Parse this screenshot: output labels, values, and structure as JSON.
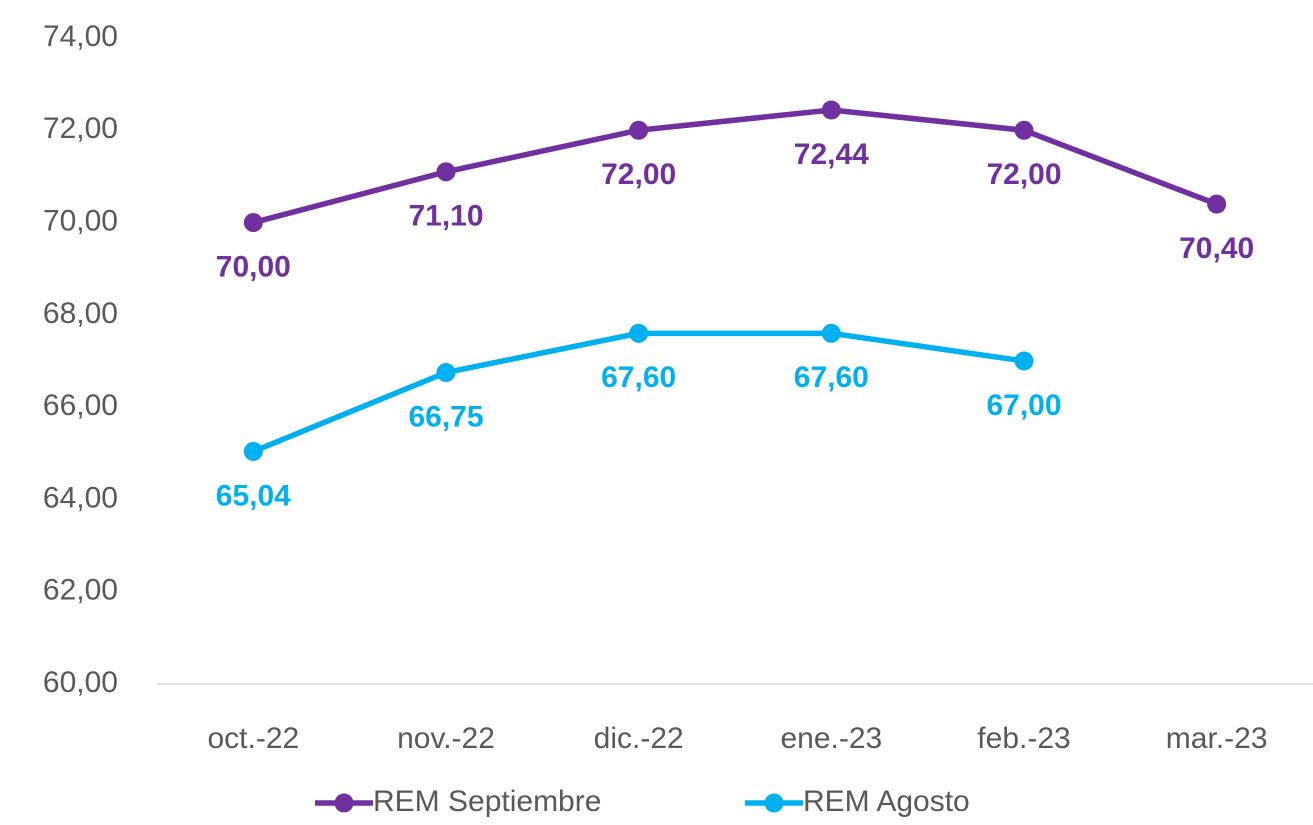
{
  "chart_data": {
    "type": "line",
    "categories": [
      "oct.-22",
      "nov.-22",
      "dic.-22",
      "ene.-23",
      "feb.-23",
      "mar.-23"
    ],
    "series": [
      {
        "name": "REM Septiembre",
        "color": "#7030a0",
        "values": [
          70.0,
          71.1,
          72.0,
          72.44,
          72.0,
          70.4
        ],
        "value_labels": [
          "70,00",
          "71,10",
          "72,00",
          "72,44",
          "72,00",
          "70,40"
        ]
      },
      {
        "name": "REM Agosto",
        "color": "#00b0f0",
        "values": [
          65.04,
          66.75,
          67.6,
          67.6,
          67.0,
          null
        ],
        "value_labels": [
          "65,04",
          "66,75",
          "67,60",
          "67,60",
          "67,00",
          null
        ]
      }
    ],
    "ylim": [
      60,
      74
    ],
    "yticks": [
      {
        "value": 60,
        "label": "60,00"
      },
      {
        "value": 62,
        "label": "62,00"
      },
      {
        "value": 64,
        "label": "64,00"
      },
      {
        "value": 66,
        "label": "66,00"
      },
      {
        "value": 68,
        "label": "68,00"
      },
      {
        "value": 70,
        "label": "70,00"
      },
      {
        "value": 72,
        "label": "72,00"
      },
      {
        "value": 74,
        "label": "74,00"
      }
    ],
    "grid": false,
    "legend": "bottom"
  }
}
